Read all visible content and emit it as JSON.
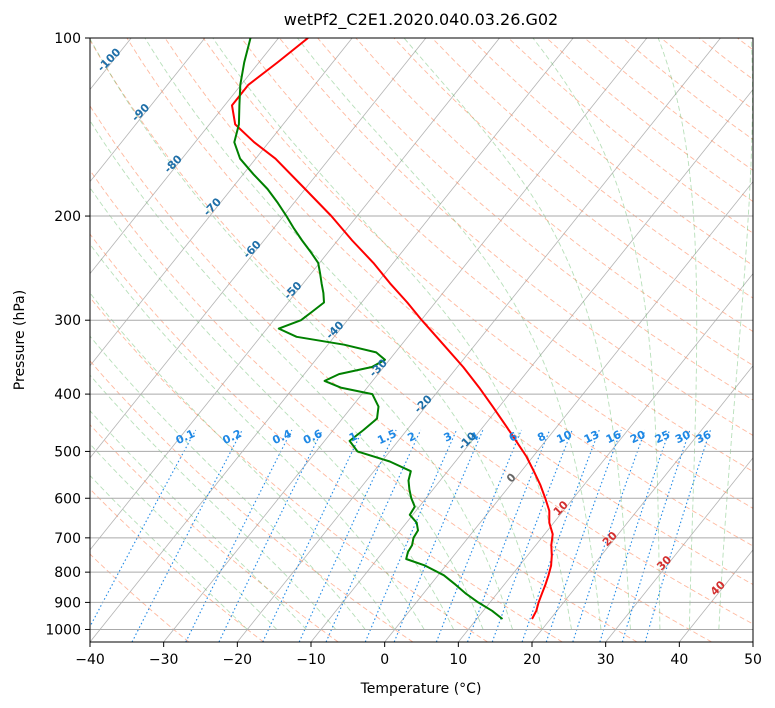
{
  "chart_data": {
    "type": "line",
    "title": "wetPf2_C2E1.2020.040.03.26.G02",
    "xlabel": "Temperature (°C)",
    "ylabel": "Pressure (hPa)",
    "xlim": [
      -40,
      50
    ],
    "ylim": [
      1050,
      100
    ],
    "y_scale": "log",
    "x_ticks": [
      -40,
      -30,
      -20,
      -10,
      0,
      10,
      20,
      30,
      40,
      50
    ],
    "x_tick_labels": [
      "−40",
      "−30",
      "−20",
      "−10",
      "0",
      "10",
      "20",
      "30",
      "40",
      "50"
    ],
    "y_ticks": [
      100,
      200,
      300,
      400,
      500,
      600,
      700,
      800,
      900,
      1000
    ],
    "y_tick_labels": [
      "100",
      "200",
      "300",
      "400",
      "500",
      "600",
      "700",
      "800",
      "900",
      "1000"
    ],
    "series": [
      {
        "role": "temperature",
        "color": "#ff0000",
        "pressure": [
          960,
          930,
          900,
          870,
          840,
          810,
          780,
          750,
          720,
          690,
          660,
          630,
          600,
          570,
          540,
          510,
          480,
          450,
          420,
          390,
          360,
          330,
          300,
          280,
          260,
          240,
          220,
          200,
          180,
          160,
          150,
          140,
          130,
          120,
          110,
          100
        ],
        "temperature": [
          17.5,
          17.2,
          16.6,
          16.1,
          15.6,
          15.0,
          14.3,
          13.3,
          12.1,
          11.1,
          9.4,
          8.1,
          6.2,
          4.1,
          1.7,
          -0.9,
          -4.0,
          -7.3,
          -10.9,
          -14.8,
          -19.2,
          -24.3,
          -29.9,
          -33.8,
          -38.2,
          -42.7,
          -48.0,
          -53.5,
          -60.0,
          -67.3,
          -72.0,
          -76.5,
          -79.0,
          -79.0,
          -77.5,
          -76.0
        ]
      },
      {
        "role": "dewpoint",
        "color": "#008000",
        "pressure": [
          960,
          930,
          900,
          870,
          840,
          810,
          780,
          760,
          740,
          720,
          700,
          680,
          660,
          640,
          620,
          600,
          580,
          560,
          540,
          520,
          500,
          480,
          460,
          440,
          420,
          400,
          390,
          380,
          370,
          360,
          350,
          340,
          330,
          320,
          310,
          300,
          290,
          280,
          270,
          260,
          250,
          240,
          230,
          220,
          210,
          200,
          190,
          180,
          170,
          160,
          150,
          140,
          130,
          120,
          110,
          100
        ],
        "temperature": [
          13.5,
          11.2,
          8.4,
          5.8,
          3.4,
          0.8,
          -2.8,
          -6.1,
          -6.6,
          -6.8,
          -7.4,
          -7.6,
          -8.6,
          -10.4,
          -10.6,
          -12.0,
          -13.2,
          -14.3,
          -15.0,
          -18.9,
          -24.4,
          -26.6,
          -25.9,
          -25.3,
          -26.4,
          -28.6,
          -33.6,
          -36.5,
          -35.3,
          -31.6,
          -30.6,
          -32.6,
          -37.8,
          -45.1,
          -48.4,
          -46.3,
          -45.7,
          -45.1,
          -46.2,
          -47.5,
          -48.8,
          -50.2,
          -52.4,
          -54.8,
          -57.2,
          -59.6,
          -62.2,
          -65.1,
          -68.6,
          -72.1,
          -74.7,
          -76.0,
          -78.0,
          -80.1,
          -82.0,
          -83.8
        ]
      }
    ],
    "mixing_ratio_labels": [
      "0.1",
      "0.2",
      "0.4",
      "0.6",
      "1",
      "1.5",
      "2",
      "3",
      "4",
      "6",
      "8",
      "10",
      "13",
      "16",
      "20",
      "25",
      "30",
      "36"
    ],
    "dry_adiabat_labels": [
      "-100",
      "-90",
      "-80",
      "-70",
      "-60",
      "-50",
      "-40",
      "-30",
      "-20",
      "-10",
      "0"
    ],
    "moist_adiabat_labels": [
      "10",
      "20",
      "30",
      "40"
    ],
    "grid": true
  }
}
